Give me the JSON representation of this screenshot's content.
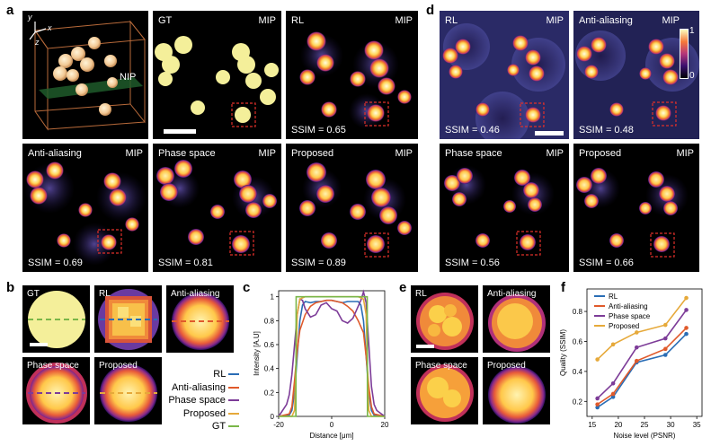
{
  "panels": {
    "a": "a",
    "b": "b",
    "c": "c",
    "d": "d",
    "e": "e",
    "f": "f"
  },
  "a": {
    "volume": {
      "axis_x": "x",
      "axis_y": "y",
      "axis_z": "z",
      "plane_label": "NIP"
    },
    "tiles": [
      {
        "title": "GT",
        "tag": "MIP",
        "ssim": ""
      },
      {
        "title": "RL",
        "tag": "MIP",
        "ssim": "SSIM = 0.65"
      },
      {
        "title": "Anti-aliasing",
        "tag": "MIP",
        "ssim": "SSIM = 0.69"
      },
      {
        "title": "Phase space",
        "tag": "MIP",
        "ssim": "SSIM = 0.81"
      },
      {
        "title": "Proposed",
        "tag": "MIP",
        "ssim": "SSIM = 0.89"
      }
    ]
  },
  "d": {
    "tiles": [
      {
        "title": "RL",
        "tag": "MIP",
        "ssim": "SSIM = 0.46"
      },
      {
        "title": "Anti-aliasing",
        "tag": "MIP",
        "ssim": "SSIM = 0.48"
      },
      {
        "title": "Phase space",
        "tag": "MIP",
        "ssim": "SSIM = 0.56"
      },
      {
        "title": "Proposed",
        "tag": "MIP",
        "ssim": "SSIM = 0.66"
      }
    ],
    "colorbar": {
      "max": "1",
      "min": "0"
    }
  },
  "b": {
    "tiles": [
      {
        "title": "GT"
      },
      {
        "title": "RL"
      },
      {
        "title": "Anti-aliasing"
      },
      {
        "title": "Phase space"
      },
      {
        "title": "Proposed"
      }
    ],
    "legend": [
      "RL",
      "Anti-aliasing",
      "Phase space",
      "Proposed",
      "GT"
    ]
  },
  "e": {
    "tiles": [
      {
        "title": "RL"
      },
      {
        "title": "Anti-aliasing"
      },
      {
        "title": "Phase space"
      },
      {
        "title": "Proposed"
      }
    ]
  },
  "colors": {
    "RL": "#2a6db5",
    "Anti-aliasing": "#e05a2b",
    "Phase space": "#7d3c98",
    "Proposed": "#e6a93a",
    "GT": "#7ab648",
    "roi": "#e0302a",
    "bead": "#f4ef9a"
  },
  "chart_data": [
    {
      "type": "line",
      "xlabel": "Distance [μm]",
      "ylabel": "Intensity [A.U]",
      "xlim": [
        -20,
        20
      ],
      "ylim": [
        0,
        1.05
      ],
      "xticks": [
        -20,
        0,
        20
      ],
      "yticks": [
        0,
        0.2,
        0.4,
        0.6,
        0.8,
        1
      ],
      "grid": false,
      "series": [
        {
          "name": "RL",
          "x": [
            -20,
            -16,
            -15,
            -14,
            -13,
            -12,
            -11,
            -10,
            -8,
            -6,
            -4,
            -2,
            0,
            2,
            4,
            6,
            8,
            10,
            11,
            12,
            13,
            14,
            15,
            16,
            20
          ],
          "y": [
            0.0,
            0.01,
            0.05,
            0.2,
            0.5,
            0.8,
            0.93,
            0.96,
            0.95,
            0.96,
            0.96,
            0.97,
            0.97,
            0.96,
            0.95,
            0.96,
            0.96,
            0.96,
            0.93,
            0.8,
            0.5,
            0.2,
            0.05,
            0.01,
            0.0
          ]
        },
        {
          "name": "Anti-aliasing",
          "x": [
            -20,
            -16,
            -15,
            -14,
            -13,
            -12,
            -10,
            -8,
            -6,
            -4,
            -2,
            0,
            2,
            4,
            6,
            8,
            10,
            12,
            13,
            14,
            15,
            16,
            20
          ],
          "y": [
            0.0,
            0.02,
            0.08,
            0.3,
            0.55,
            0.72,
            0.85,
            0.92,
            0.95,
            0.96,
            0.97,
            0.97,
            0.96,
            0.95,
            0.92,
            0.88,
            0.8,
            0.7,
            0.5,
            0.25,
            0.08,
            0.02,
            0.0
          ]
        },
        {
          "name": "Phase space",
          "x": [
            -20,
            -17,
            -16,
            -15,
            -14,
            -13,
            -12,
            -11,
            -10,
            -8,
            -6,
            -4,
            -2,
            0,
            2,
            4,
            6,
            8,
            10,
            11,
            12,
            13,
            14,
            15,
            16,
            17,
            20
          ],
          "y": [
            0.0,
            0.1,
            0.18,
            0.35,
            0.6,
            0.85,
            0.98,
            0.97,
            0.9,
            0.83,
            0.85,
            0.93,
            0.95,
            0.9,
            0.88,
            0.8,
            0.78,
            0.82,
            0.92,
            0.97,
            1.04,
            0.95,
            0.6,
            0.25,
            0.1,
            0.05,
            0.0
          ]
        },
        {
          "name": "Proposed",
          "x": [
            -20,
            -15,
            -14,
            -13.5,
            -13,
            -12,
            -10,
            -5,
            0,
            5,
            10,
            12,
            13,
            13.5,
            14,
            15,
            20
          ],
          "y": [
            0.0,
            0.0,
            0.05,
            0.4,
            0.85,
            0.98,
            1.0,
            1.0,
            1.0,
            1.0,
            1.0,
            0.98,
            0.85,
            0.4,
            0.05,
            0.0,
            0.0
          ]
        },
        {
          "name": "GT",
          "x": [
            -20,
            -13.5,
            -13.4,
            13.4,
            13.5,
            20
          ],
          "y": [
            0.0,
            0.0,
            1.0,
            1.0,
            0.0,
            0.0
          ]
        }
      ]
    },
    {
      "type": "line",
      "xlabel": "Noise level (PSNR)",
      "ylabel": "Quality (SSIM)",
      "xlim": [
        14,
        36
      ],
      "ylim": [
        0.1,
        0.95
      ],
      "xticks": [
        15,
        20,
        25,
        30,
        35
      ],
      "yticks": [
        0.2,
        0.4,
        0.6,
        0.8
      ],
      "grid": false,
      "legend_position": "top-left",
      "series": [
        {
          "name": "RL",
          "x": [
            16,
            19,
            23.5,
            29,
            33
          ],
          "y": [
            0.16,
            0.23,
            0.46,
            0.51,
            0.65
          ]
        },
        {
          "name": "Anti-aliasing",
          "x": [
            16,
            19,
            23.5,
            29,
            33
          ],
          "y": [
            0.18,
            0.25,
            0.47,
            0.55,
            0.69
          ]
        },
        {
          "name": "Phase space",
          "x": [
            16,
            19,
            23.5,
            29,
            33
          ],
          "y": [
            0.22,
            0.32,
            0.56,
            0.62,
            0.81
          ]
        },
        {
          "name": "Proposed",
          "x": [
            16,
            19,
            23.5,
            29,
            33
          ],
          "y": [
            0.48,
            0.58,
            0.66,
            0.71,
            0.89
          ]
        }
      ]
    }
  ]
}
